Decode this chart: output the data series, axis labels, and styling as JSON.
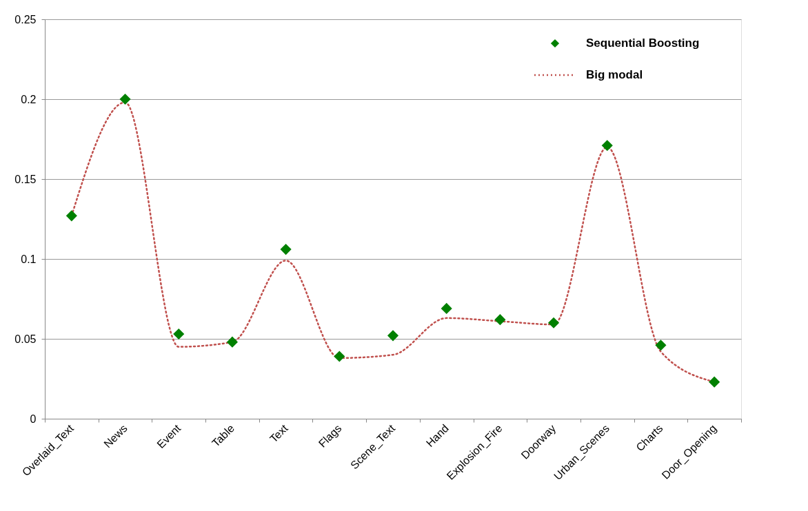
{
  "chart_data": {
    "type": "line",
    "categories": [
      "Overlaid_Text",
      "News",
      "Event",
      "Table",
      "Text",
      "Flags",
      "Scene_Text",
      "Hand",
      "Explosion_Fire",
      "Doorway",
      "Urban_Scenes",
      "Charts",
      "Door_Opening"
    ],
    "series": [
      {
        "name": "Sequential Boosting",
        "type": "scatter",
        "marker": "diamond",
        "color": "#008000",
        "values": [
          0.127,
          0.2,
          0.053,
          0.048,
          0.106,
          0.039,
          0.052,
          0.069,
          0.062,
          0.06,
          0.171,
          0.046,
          0.023
        ]
      },
      {
        "name": "Big modal",
        "type": "line",
        "line_style": "dotted",
        "color": "#c0504d",
        "values": [
          0.127,
          0.198,
          0.045,
          0.048,
          0.099,
          0.038,
          0.04,
          0.063,
          0.061,
          0.059,
          0.17,
          0.042,
          0.023
        ]
      }
    ],
    "ylim": [
      0,
      0.25
    ],
    "yticks": [
      0,
      0.05,
      0.1,
      0.15,
      0.2,
      0.25
    ],
    "grid": "y",
    "legend": "top right"
  }
}
